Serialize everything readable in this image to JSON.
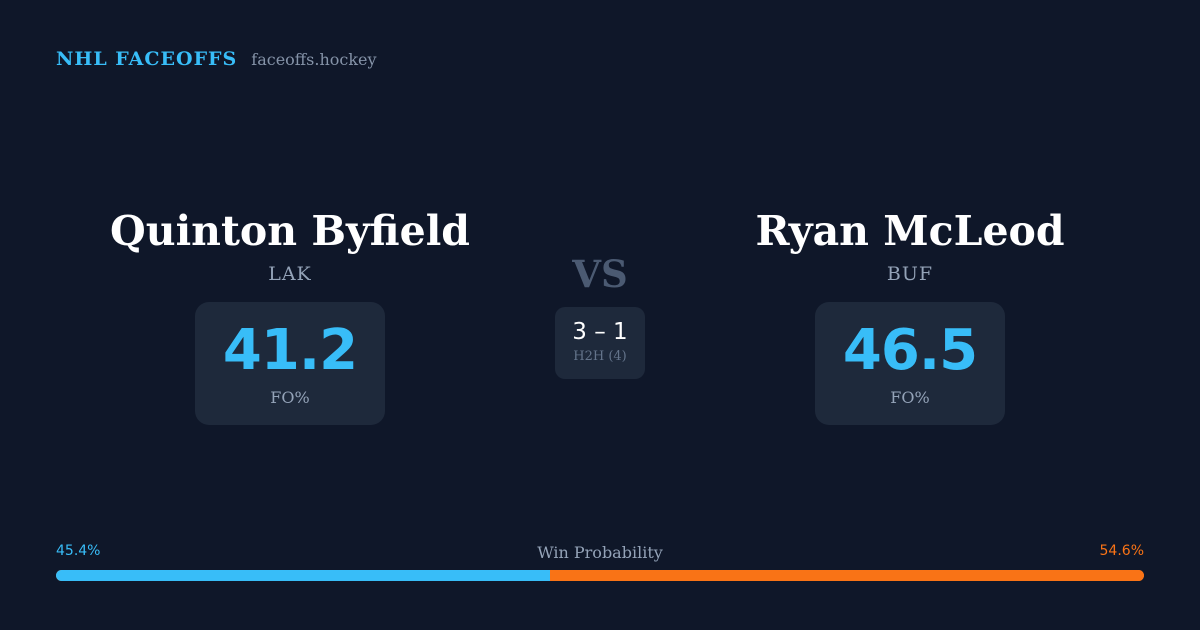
{
  "brand": {
    "name": "NHL FACEOFFS",
    "domain": "faceoffs.hockey"
  },
  "player_left": {
    "name": "Quinton Byfield",
    "team": "LAK",
    "fo_pct": "41.2",
    "fo_label": "FO%"
  },
  "player_right": {
    "name": "Ryan McLeod",
    "team": "BUF",
    "fo_pct": "46.5",
    "fo_label": "FO%"
  },
  "matchup": {
    "vs_label": "VS",
    "h2h_score": "3 – 1",
    "h2h_label": "H2H (4)"
  },
  "win_probability": {
    "title": "Win Probability",
    "left_label": "45.4%",
    "right_label": "54.6%",
    "left_value": 45.4,
    "right_value": 54.6,
    "left_color": "#38bdf8",
    "right_color": "#f97316"
  }
}
